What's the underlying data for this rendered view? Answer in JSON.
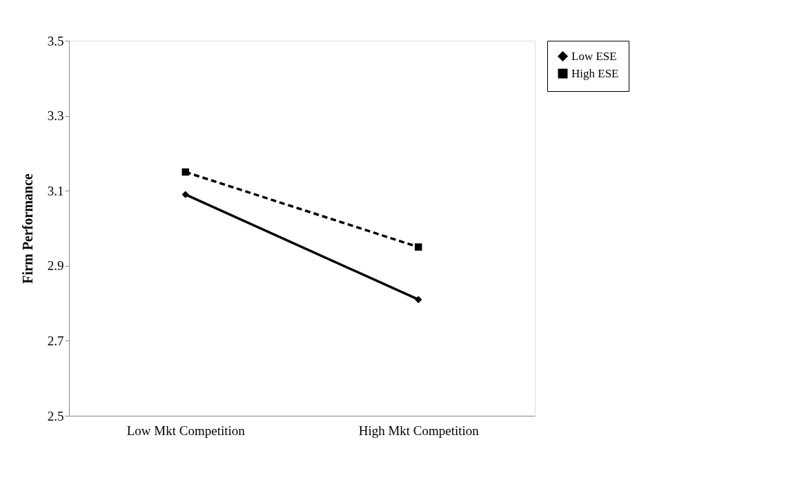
{
  "chart_data": {
    "type": "line",
    "ylabel": "Firm Performance",
    "categories": [
      "Low Mkt Competition",
      "High Mkt Competition"
    ],
    "series": [
      {
        "name": "Low ESE",
        "color": "#000000",
        "values": [
          3.09,
          2.81
        ],
        "marker": "diamond",
        "line_style": "solid"
      },
      {
        "name": "High ESE",
        "color": "#000000",
        "values": [
          3.15,
          2.95
        ],
        "marker": "square",
        "line_style": "dashed"
      }
    ],
    "ylim": [
      2.5,
      3.5
    ],
    "yticks": [
      2.5,
      2.7,
      2.9,
      3.1,
      3.3,
      3.5
    ],
    "grid": false,
    "legend": "right"
  }
}
